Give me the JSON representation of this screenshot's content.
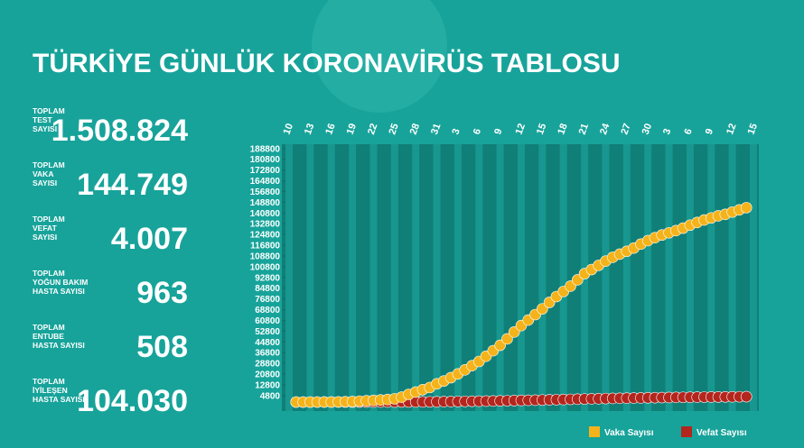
{
  "title": "TÜRKİYE GÜNLÜK KORONAVİRÜS TABLOSU",
  "stats": [
    {
      "label": [
        "TOPLAM",
        "TEST",
        "SAYISI"
      ],
      "value": "1.508.824"
    },
    {
      "label": [
        "TOPLAM",
        "VAKA",
        "SAYISI"
      ],
      "value": "144.749"
    },
    {
      "label": [
        "TOPLAM",
        "VEFAT",
        "SAYISI"
      ],
      "value": "4.007"
    },
    {
      "label": [
        "TOPLAM",
        "YOĞUN BAKIM",
        "HASTA SAYISI"
      ],
      "value": "963"
    },
    {
      "label": [
        "TOPLAM",
        "ENTUBE",
        "HASTA SAYISI"
      ],
      "value": "508"
    },
    {
      "label": [
        "TOPLAM",
        "İYİLEŞEN",
        "HASTA SAYISI"
      ],
      "value": "104.030"
    }
  ],
  "chart_data": {
    "type": "scatter-line",
    "categories": [
      "10",
      null,
      null,
      "13",
      null,
      null,
      "16",
      null,
      null,
      "19",
      null,
      null,
      "22",
      null,
      null,
      "25",
      null,
      null,
      "28",
      null,
      null,
      "31",
      null,
      null,
      "3",
      null,
      null,
      "6",
      null,
      null,
      "9",
      null,
      null,
      "12",
      null,
      null,
      "15",
      null,
      null,
      "18",
      null,
      null,
      "21",
      null,
      null,
      "24",
      null,
      null,
      "27",
      null,
      null,
      "30",
      null,
      null,
      "3",
      null,
      null,
      "6",
      null,
      null,
      "9",
      null,
      null,
      "12",
      null,
      null,
      "15"
    ],
    "series": [
      {
        "name": "Vaka Sayısı",
        "color": "#f5b31b",
        "values": [
          null,
          1,
          1,
          5,
          6,
          18,
          47,
          98,
          191,
          359,
          670,
          947,
          1236,
          1529,
          1872,
          2433,
          3629,
          5698,
          7402,
          9217,
          10827,
          13531,
          15679,
          18135,
          20921,
          23934,
          27069,
          30217,
          34109,
          38226,
          42282,
          47029,
          52167,
          56956,
          61049,
          65111,
          69392,
          74193,
          78546,
          82329,
          86306,
          90980,
          95591,
          98674,
          101790,
          104912,
          107773,
          110130,
          112261,
          114653,
          117589,
          120204,
          122392,
          124375,
          126045,
          127659,
          129491,
          131744,
          133721,
          135569,
          137115,
          138657,
          139771,
          141475,
          143114,
          144749,
          null
        ]
      },
      {
        "name": "Vefat Sayısı",
        "color": "#b3261e",
        "values": [
          null,
          0,
          0,
          0,
          0,
          0,
          0,
          1,
          2,
          3,
          4,
          9,
          30,
          37,
          44,
          59,
          75,
          92,
          108,
          131,
          168,
          214,
          277,
          356,
          425,
          501,
          574,
          649,
          725,
          812,
          908,
          1006,
          1101,
          1198,
          1296,
          1403,
          1518,
          1643,
          1769,
          1890,
          2017,
          2140,
          2259,
          2376,
          2491,
          2600,
          2706,
          2805,
          2900,
          2992,
          3081,
          3174,
          3258,
          3336,
          3397,
          3461,
          3520,
          3584,
          3641,
          3689,
          3739,
          3786,
          3841,
          3894,
          3952,
          4007,
          null
        ]
      }
    ],
    "ylim": [
      0,
      192000
    ],
    "yticks": [
      4800,
      12800,
      20800,
      28800,
      36800,
      44800,
      52800,
      60800,
      68800,
      76800,
      84800,
      92800,
      100800,
      108800,
      116800,
      124800,
      132800,
      140800,
      148800,
      156800,
      164800,
      172800,
      180800,
      188800
    ]
  }
}
